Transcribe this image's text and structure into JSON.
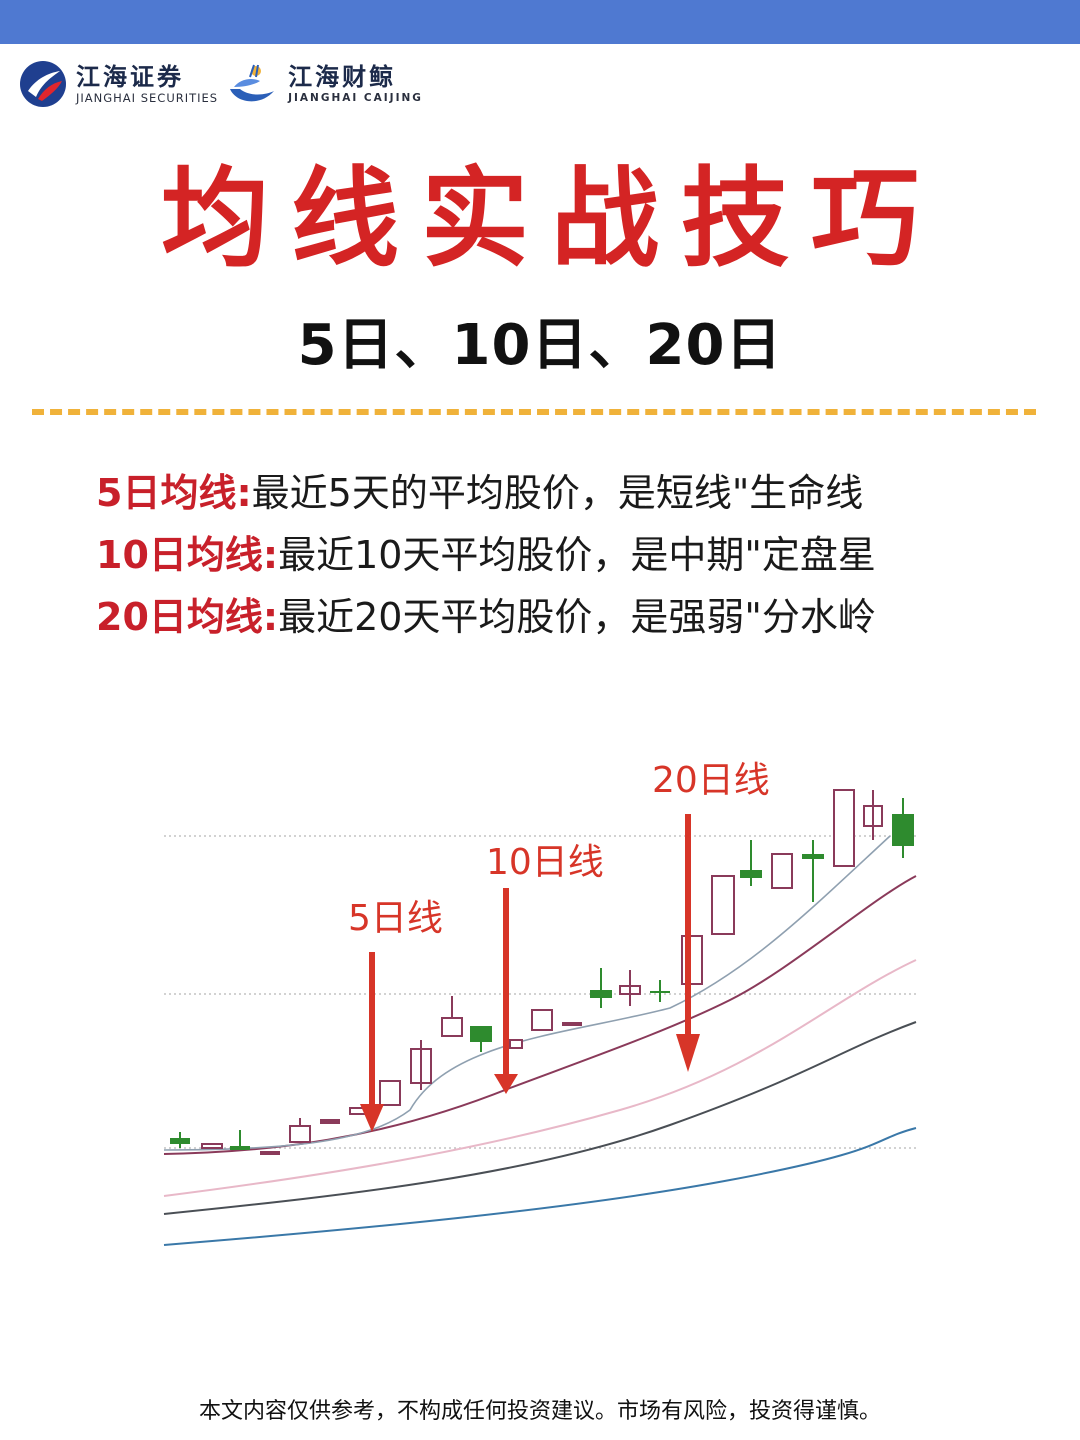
{
  "header": {
    "bar_color": "#4f79d1",
    "logo_left": {
      "name_cn": "江海证券",
      "name_en": "JIANGHAI SECURITIES"
    },
    "logo_right": {
      "name_cn": "江海财鲸",
      "name_en": "JIANGHAI CAIJING"
    }
  },
  "title": "均线实战技巧",
  "subtitle": "5日、10日、20日",
  "accent_colors": {
    "title": "#d42424",
    "divider": "#f0b23a",
    "candle_up": "#ffffff",
    "candle_down": "#2e8b2e"
  },
  "definitions": [
    {
      "term": "5日均线:",
      "text": "最近5天的平均股价，是短线\"生命线"
    },
    {
      "term": "10日均线:",
      "text": "最近10天平均股价，是中期\"定盘星"
    },
    {
      "term": "20日均线:",
      "text": "最近20天平均股价，是强弱\"分水岭"
    }
  ],
  "chart": {
    "type": "candlestick",
    "arrow_labels": [
      "5日线",
      "10日线",
      "20日线"
    ],
    "grid": "dotted horizontal lines",
    "line_colors": [
      "#8fa0b0",
      "#8a3a5a",
      "#e8b8c8",
      "#4a4f55",
      "#3a78a8"
    ]
  },
  "footer": "本文内容仅供参考，不构成任何投资建议。市场有风险，投资得谨慎。"
}
